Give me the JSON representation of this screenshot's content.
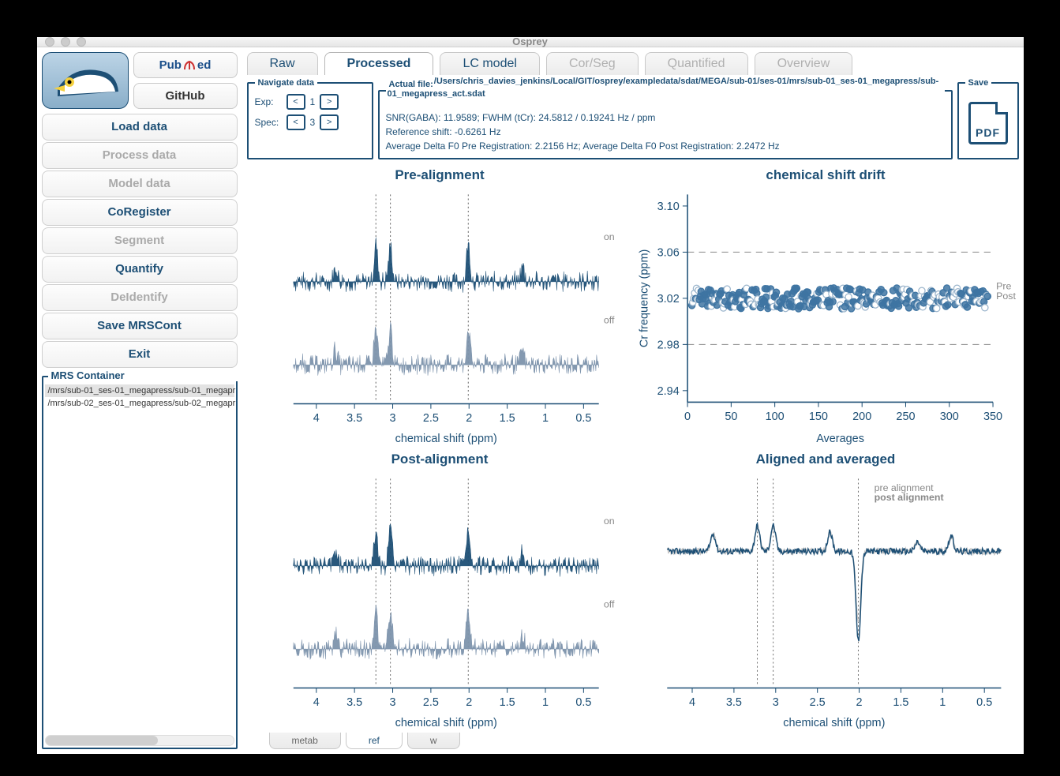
{
  "window": {
    "title": "Osprey"
  },
  "links": {
    "pubmed": "PubMed",
    "github": "GitHub"
  },
  "sidebar": {
    "buttons": [
      {
        "label": "Load data",
        "enabled": true
      },
      {
        "label": "Process data",
        "enabled": false
      },
      {
        "label": "Model data",
        "enabled": false
      },
      {
        "label": "CoRegister",
        "enabled": true
      },
      {
        "label": "Segment",
        "enabled": false
      },
      {
        "label": "Quantify",
        "enabled": true
      },
      {
        "label": "DeIdentify",
        "enabled": false
      },
      {
        "label": "Save MRSCont",
        "enabled": true
      },
      {
        "label": "Exit",
        "enabled": true
      }
    ],
    "container_title": "MRS Container",
    "items": [
      "/mrs/sub-01_ses-01_megapress/sub-01_megapr",
      "/mrs/sub-02_ses-01_megapress/sub-02_megapr"
    ]
  },
  "tabs": [
    {
      "label": "Raw",
      "state": "enabled"
    },
    {
      "label": "Processed",
      "state": "active"
    },
    {
      "label": "LC model",
      "state": "enabled"
    },
    {
      "label": "Cor/Seg",
      "state": "disabled"
    },
    {
      "label": "Quantified",
      "state": "disabled"
    },
    {
      "label": "Overview",
      "state": "disabled"
    }
  ],
  "nav": {
    "title": "Navigate data",
    "exp": {
      "label": "Exp:",
      "value": "1"
    },
    "spec": {
      "label": "Spec:",
      "value": "3"
    },
    "prev": "<",
    "next": ">"
  },
  "fileinfo": {
    "title": "Actual file:",
    "path": "/Users/chris_davies_jenkins/Local/GIT/osprey/exampledata/sdat/MEGA/sub-01/ses-01/mrs/sub-01_ses-01_megapress/sub-01_megapress_act.sdat",
    "line1": "SNR(GABA): 11.9589; FWHM (tCr): 24.5812 / 0.19241 Hz / ppm",
    "line2": "Reference shift: -0.6261 Hz",
    "line3": "Average Delta F0 Pre Registration: 2.2156 Hz; Average Delta F0 Post Registration: 2.2472 Hz"
  },
  "save": {
    "title": "Save",
    "pdf": "PDF"
  },
  "charts": {
    "pre": {
      "type": "line-spectrum",
      "title": "Pre-alignment",
      "xlabel": "chemical shift (ppm)",
      "xticks": [
        "4",
        "3.5",
        "3",
        "2.5",
        "2",
        "1.5",
        "1",
        "0.5"
      ],
      "vlines": [
        3.22,
        3.03,
        2.01
      ],
      "labels": {
        "on": "on",
        "off": "off"
      },
      "colors": {
        "on": "#1d4f75",
        "off": "#7d93ac",
        "axis": "#1d4f75",
        "vline": "#6a6a6a"
      }
    },
    "post": {
      "type": "line-spectrum",
      "title": "Post-alignment",
      "xlabel": "chemical shift (ppm)",
      "xticks": [
        "4",
        "3.5",
        "3",
        "2.5",
        "2",
        "1.5",
        "1",
        "0.5"
      ],
      "vlines": [
        3.22,
        3.03,
        2.01
      ],
      "labels": {
        "on": "on",
        "off": "off"
      },
      "colors": {
        "on": "#1d4f75",
        "off": "#7d93ac",
        "axis": "#1d4f75"
      }
    },
    "drift": {
      "type": "scatter",
      "title": "chemical shift drift",
      "xlabel": "Averages",
      "ylabel": "Cr frequency (ppm)",
      "xlim": [
        0,
        350
      ],
      "xticks": [
        0,
        50,
        100,
        150,
        200,
        250,
        300,
        350
      ],
      "ylim": [
        2.93,
        3.11
      ],
      "yticks": [
        2.94,
        2.98,
        3.02,
        3.06,
        3.1
      ],
      "hlines": [
        2.98,
        3.06
      ],
      "colors": {
        "open": "#ffffff",
        "open_stroke": "#9bb5cc",
        "filled": "#3e74a2",
        "axis": "#1d4f75",
        "hline": "#8a8a8a"
      },
      "legend": {
        "pre": "Pre",
        "post": "Post"
      },
      "n_points": 320
    },
    "aligned": {
      "type": "line",
      "title": "Aligned and averaged",
      "xlabel": "chemical shift (ppm)",
      "xticks": [
        "4",
        "3.5",
        "3",
        "2.5",
        "2",
        "1.5",
        "1",
        "0.5"
      ],
      "vlines": [
        3.22,
        3.03,
        2.01
      ],
      "legend": {
        "pre": "pre alignment",
        "post": "post alignment"
      },
      "colors": {
        "pre": "#c5c5c5",
        "post": "#1d4f75",
        "axis": "#1d4f75"
      }
    }
  },
  "bottom_tabs": [
    {
      "label": "metab",
      "state": "normal"
    },
    {
      "label": "ref",
      "state": "active"
    },
    {
      "label": "w",
      "state": "normal"
    }
  ]
}
